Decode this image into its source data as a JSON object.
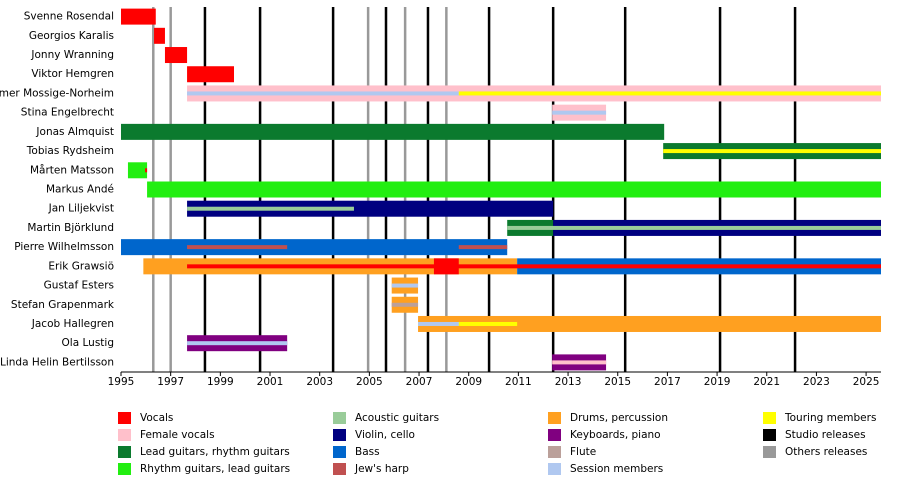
{
  "chart_data": {
    "type": "timeline",
    "xlim": [
      1995,
      2025.6
    ],
    "xticks": [
      1995,
      1997,
      1999,
      2001,
      2003,
      2005,
      2007,
      2009,
      2011,
      2013,
      2015,
      2017,
      2019,
      2021,
      2023,
      2025
    ],
    "legend": [
      {
        "name": "Vocals",
        "color": "#ff0000"
      },
      {
        "name": "Female vocals",
        "color": "#ffc0cb"
      },
      {
        "name": "Lead guitars, rhythm guitars",
        "color": "#0b7a2e"
      },
      {
        "name": "Rhythm guitars, lead guitars",
        "color": "#22ee11"
      },
      {
        "name": "Acoustic guitars",
        "color": "#99cc99"
      },
      {
        "name": "Violin, cello",
        "color": "#000080"
      },
      {
        "name": "Bass",
        "color": "#0066cc"
      },
      {
        "name": "Jew's harp",
        "color": "#c05050"
      },
      {
        "name": "Drums, percussion",
        "color": "#ffa020"
      },
      {
        "name": "Keyboards, piano",
        "color": "#800080"
      },
      {
        "name": "Flute",
        "color": "#bba09a"
      },
      {
        "name": "Session members",
        "color": "#b0c8f0"
      },
      {
        "name": "Touring members",
        "color": "#ffff00"
      },
      {
        "name": "Studio releases",
        "color": "#000000"
      },
      {
        "name": "Others releases",
        "color": "#999999"
      }
    ],
    "releases": [
      {
        "kind": "Studio releases",
        "x": [
          1998.38,
          2000.6,
          2003.54,
          2005.67,
          2007.36,
          2009.82,
          2012.4,
          2015.3,
          2019.12,
          2022.14
        ]
      },
      {
        "kind": "Others releases",
        "x": [
          1996.3,
          1997.0,
          2004.95,
          2006.44,
          2008.1
        ]
      }
    ],
    "members": [
      {
        "name": "Svenne Rosendal",
        "bars": [
          {
            "role": "Vocals",
            "start": 1995,
            "end": 1996.4
          }
        ]
      },
      {
        "name": "Georgios Karalis",
        "bars": [
          {
            "role": "Vocals",
            "start": 1996.33,
            "end": 1996.77
          }
        ]
      },
      {
        "name": "Jonny Wranning",
        "bars": [
          {
            "role": "Vocals",
            "start": 1996.77,
            "end": 1997.66
          }
        ]
      },
      {
        "name": "Viktor Hemgren",
        "bars": [
          {
            "role": "Vocals",
            "start": 1997.66,
            "end": 1999.55
          }
        ]
      },
      {
        "name": "Ymer Mossige-Norheim",
        "bars": [
          {
            "role": "Female vocals",
            "start": 1997.66,
            "end": 2025.6
          },
          {
            "role": "Session members",
            "start": 1997.66,
            "end": 2008.6,
            "stripe": true
          },
          {
            "role": "Touring members",
            "start": 2008.6,
            "end": 2025.6,
            "stripe": true
          }
        ]
      },
      {
        "name": "Stina Engelbrecht",
        "bars": [
          {
            "role": "Female vocals",
            "start": 2012.36,
            "end": 2014.53
          },
          {
            "role": "Session members",
            "start": 2012.36,
            "end": 2014.53,
            "stripe": true
          }
        ]
      },
      {
        "name": "Jonas Almquist",
        "bars": [
          {
            "role": "Lead guitars, rhythm guitars",
            "start": 1995,
            "end": 2016.87
          }
        ]
      },
      {
        "name": "Tobias Rydsheim",
        "bars": [
          {
            "role": "Lead guitars, rhythm guitars",
            "start": 2016.83,
            "end": 2025.6
          },
          {
            "role": "Touring members",
            "start": 2016.83,
            "end": 2025.6,
            "stripe": true
          }
        ]
      },
      {
        "name": "Mårten Matsson",
        "bars": [
          {
            "role": "Rhythm guitars, lead guitars",
            "start": 1995.28,
            "end": 1996.05
          },
          {
            "role": "Vocals",
            "start": 1995.97,
            "end": 1996.05,
            "stripe": true
          }
        ]
      },
      {
        "name": "Markus Andé",
        "bars": [
          {
            "role": "Rhythm guitars, lead guitars",
            "start": 1996.05,
            "end": 2025.6
          }
        ]
      },
      {
        "name": "Jan Liljekvist",
        "bars": [
          {
            "role": "Violin, cello",
            "start": 1997.66,
            "end": 2012.4
          },
          {
            "role": "Acoustic guitars",
            "start": 1997.66,
            "end": 2004.38,
            "stripe": true
          }
        ]
      },
      {
        "name": "Martin Björklund",
        "bars": [
          {
            "role": "Lead guitars, rhythm guitars",
            "start": 2010.55,
            "end": 2012.4
          },
          {
            "role": "Violin, cello",
            "start": 2012.4,
            "end": 2025.6
          },
          {
            "role": "Acoustic guitars",
            "start": 2010.55,
            "end": 2025.6,
            "stripe": true
          }
        ]
      },
      {
        "name": "Pierre Wilhelmsson",
        "bars": [
          {
            "role": "Bass",
            "start": 1995,
            "end": 2010.55
          },
          {
            "role": "Jew's harp",
            "start": 1997.66,
            "end": 2001.69,
            "stripe": true
          },
          {
            "role": "Jew's harp",
            "start": 2008.6,
            "end": 2010.55,
            "stripe": true
          }
        ]
      },
      {
        "name": "Erik Grawsiö",
        "bars": [
          {
            "role": "Drums, percussion",
            "start": 1995.9,
            "end": 2010.95
          },
          {
            "role": "Bass",
            "start": 2010.95,
            "end": 2025.6
          },
          {
            "role": "Vocals",
            "start": 2007.6,
            "end": 2008.6
          },
          {
            "role": "Vocals",
            "start": 1997.66,
            "end": 2025.6,
            "stripe": true
          }
        ]
      },
      {
        "name": "Gustaf Esters",
        "bars": [
          {
            "role": "Drums, percussion",
            "start": 2005.9,
            "end": 2006.96
          },
          {
            "role": "Session members",
            "start": 2005.9,
            "end": 2006.96,
            "stripe": true
          }
        ]
      },
      {
        "name": "Stefan Grapenmark",
        "bars": [
          {
            "role": "Drums, percussion",
            "start": 2005.9,
            "end": 2006.96
          },
          {
            "role": "Flute",
            "start": 2005.9,
            "end": 2006.96,
            "stripe": true
          }
        ]
      },
      {
        "name": "Jacob Hallegren",
        "bars": [
          {
            "role": "Drums, percussion",
            "start": 2006.96,
            "end": 2025.6
          },
          {
            "role": "Touring members",
            "start": 2006.96,
            "end": 2010.95,
            "stripe": true
          },
          {
            "role": "Session members",
            "start": 2006.96,
            "end": 2008.6,
            "stripe": true
          }
        ]
      },
      {
        "name": "Ola Lustig",
        "bars": [
          {
            "role": "Keyboards, piano",
            "start": 1997.66,
            "end": 2001.69
          },
          {
            "role": "Session members",
            "start": 1997.66,
            "end": 2001.69,
            "stripe": true
          }
        ]
      },
      {
        "name": "Linda Helin Bertilsson",
        "bars": [
          {
            "role": "Keyboards, piano",
            "start": 2012.36,
            "end": 2014.53
          },
          {
            "role": "Female vocals",
            "start": 2012.36,
            "end": 2014.53,
            "stripe": true
          }
        ]
      }
    ]
  }
}
